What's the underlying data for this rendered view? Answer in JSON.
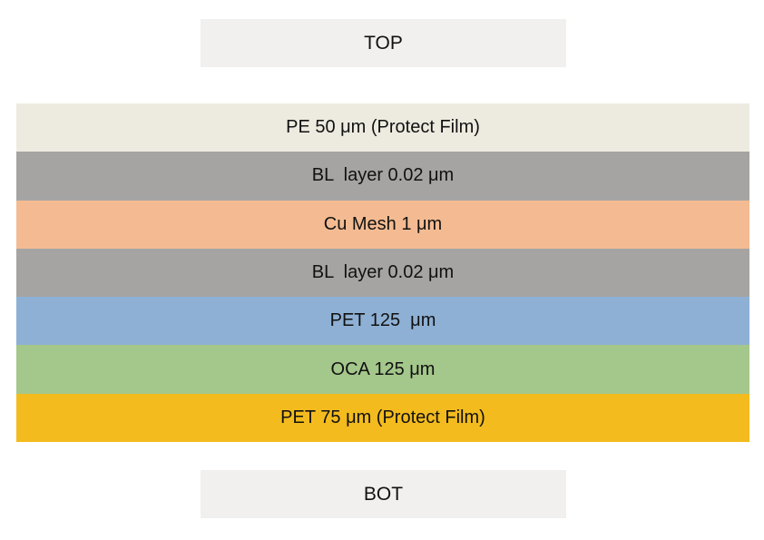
{
  "top_label": "TOP",
  "bottom_label": "BOT",
  "layers": [
    {
      "label": "PE 50 μm (Protect Film)",
      "color": "#edebe0"
    },
    {
      "label": "BL  layer 0.02 μm",
      "color": "#a5a4a3"
    },
    {
      "label": "Cu Mesh 1 μm",
      "color": "#f4bb92"
    },
    {
      "label": "BL  layer 0.02 μm",
      "color": "#a5a4a3"
    },
    {
      "label": "PET 125  μm",
      "color": "#8eb0d4"
    },
    {
      "label": "OCA 125 μm",
      "color": "#a4c78b"
    },
    {
      "label": "PET 75 μm (Protect Film)",
      "color": "#f3bb1e"
    }
  ]
}
